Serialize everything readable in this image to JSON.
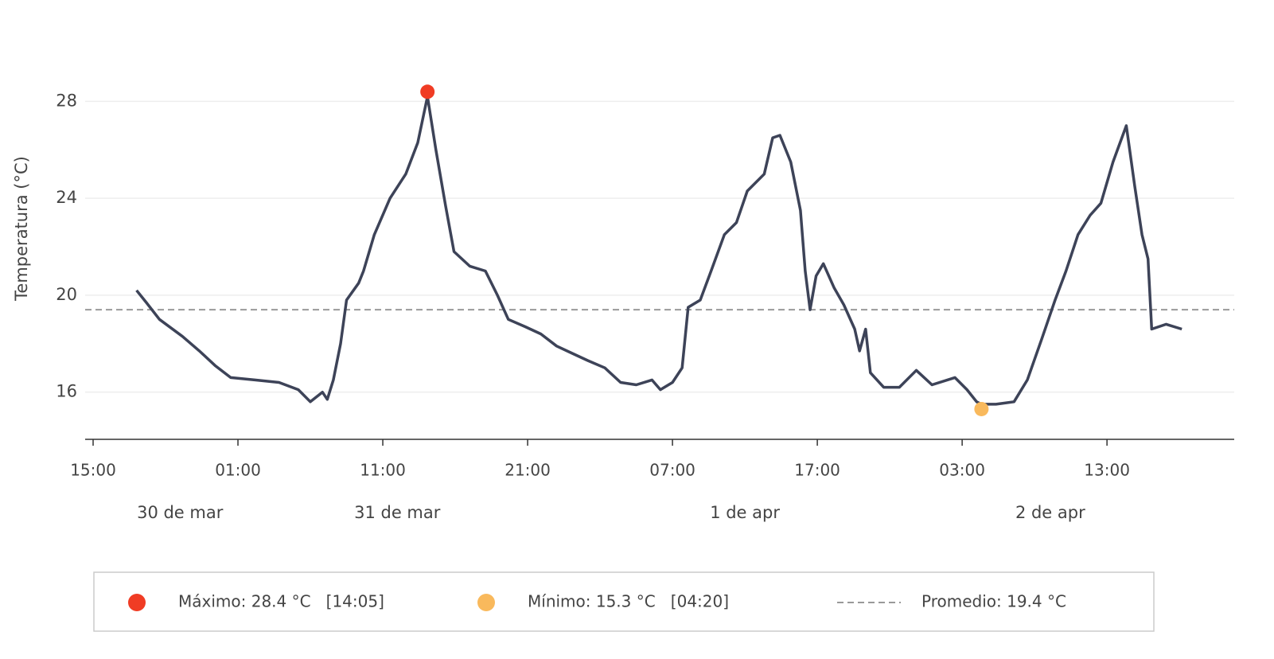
{
  "chart_data": {
    "type": "line",
    "y_label": "Temperatura (°C)",
    "color": "#3d4358",
    "x": [
      "03-30T18:00",
      "03-30T18:40",
      "03-30T19:35",
      "03-30T21:10",
      "03-30T22:20",
      "03-30T23:25",
      "03-31T00:30",
      "03-31T02:10",
      "03-31T03:50",
      "03-31T05:10",
      "03-31T06:00",
      "03-31T06:50",
      "03-31T07:10",
      "03-31T07:35",
      "03-31T08:05",
      "03-31T08:30",
      "03-31T09:20",
      "03-31T09:40",
      "03-31T10:25",
      "03-31T11:30",
      "03-31T12:35",
      "03-31T13:25",
      "03-31T14:05",
      "03-31T14:40",
      "03-31T15:20",
      "03-31T15:55",
      "03-31T17:00",
      "03-31T18:05",
      "03-31T18:55",
      "03-31T19:40",
      "03-31T20:50",
      "03-31T21:55",
      "03-31T23:00",
      "04-01T00:05",
      "04-01T01:10",
      "04-01T02:20",
      "04-01T03:25",
      "04-01T04:30",
      "04-01T05:35",
      "04-01T06:10",
      "04-01T07:00",
      "04-01T07:40",
      "04-01T08:05",
      "04-01T08:55",
      "04-01T09:40",
      "04-01T10:35",
      "04-01T11:25",
      "04-01T12:10",
      "04-01T13:20",
      "04-01T13:55",
      "04-01T14:25",
      "04-01T15:10",
      "04-01T15:50",
      "04-01T16:10",
      "04-01T16:30",
      "04-01T16:55",
      "04-01T17:25",
      "04-01T18:10",
      "04-01T18:50",
      "04-01T19:35",
      "04-01T19:55",
      "04-01T20:20",
      "04-01T20:40",
      "04-01T21:35",
      "04-01T22:40",
      "04-01T23:50",
      "04-02T00:55",
      "04-02T02:30",
      "04-02T03:20",
      "04-02T04:00",
      "04-02T04:20",
      "04-02T05:20",
      "04-02T06:35",
      "04-02T07:30",
      "04-02T08:30",
      "04-02T09:25",
      "04-02T10:10",
      "04-02T11:00",
      "04-02T11:50",
      "04-02T12:35",
      "04-02T13:25",
      "04-02T14:20",
      "04-02T14:55",
      "04-02T15:25",
      "04-02T15:50",
      "04-02T16:05",
      "04-02T17:05",
      "04-02T18:10"
    ],
    "values": [
      20.2,
      19.7,
      19.0,
      18.3,
      17.7,
      17.1,
      16.6,
      16.5,
      16.4,
      16.1,
      15.6,
      16.0,
      15.7,
      16.5,
      18.0,
      19.8,
      20.5,
      21.0,
      22.5,
      24.0,
      25.0,
      26.3,
      28.2,
      26.0,
      23.7,
      21.8,
      21.2,
      21.0,
      20.0,
      19.0,
      18.7,
      18.4,
      17.9,
      17.6,
      17.3,
      17.0,
      16.4,
      16.3,
      16.5,
      16.1,
      16.4,
      17.0,
      19.5,
      19.8,
      21.0,
      22.5,
      23.0,
      24.3,
      25.0,
      26.5,
      26.6,
      25.5,
      23.5,
      21.0,
      19.4,
      20.8,
      21.3,
      20.3,
      19.6,
      18.6,
      17.7,
      18.6,
      16.8,
      16.2,
      16.2,
      16.9,
      16.3,
      16.6,
      16.1,
      15.6,
      15.5,
      15.5,
      15.6,
      16.5,
      18.2,
      19.8,
      21.0,
      22.5,
      23.3,
      23.8,
      25.5,
      27.0,
      24.5,
      22.5,
      21.5,
      18.6,
      18.8,
      18.6
    ],
    "xlim": [
      "03-30T14:27",
      "04-02T21:47"
    ],
    "xticks": [
      {
        "value": "03-30T15:00",
        "label": "15:00"
      },
      {
        "value": "03-31T01:00",
        "label": "01:00"
      },
      {
        "value": "03-31T11:00",
        "label": "11:00"
      },
      {
        "value": "03-31T21:00",
        "label": "21:00"
      },
      {
        "value": "04-01T07:00",
        "label": "07:00"
      },
      {
        "value": "04-01T17:00",
        "label": "17:00"
      },
      {
        "value": "04-02T03:00",
        "label": "03:00"
      },
      {
        "value": "04-02T13:00",
        "label": "13:00"
      }
    ],
    "day_labels": [
      {
        "date": "03-30",
        "label": "30 de mar"
      },
      {
        "date": "03-31",
        "label": "31 de mar"
      },
      {
        "date": "04-01",
        "label": "1 de apr"
      },
      {
        "date": "04-02",
        "label": "2 de apr"
      }
    ],
    "ylim": [
      14.05,
      29
    ],
    "yticks": [
      16,
      20,
      24,
      28
    ],
    "grid": true,
    "markers": [
      {
        "label": "Máximo: 28.4 °C   [14:05]",
        "x": "03-31T14:05",
        "value": 28.4,
        "color": "#f03c24"
      },
      {
        "label": "Mínimo: 15.3 °C   [04:20]",
        "x": "04-02T04:20",
        "value": 15.3,
        "color": "#f9b95c"
      }
    ],
    "average": {
      "label": "Promedio: 19.4 °C",
      "value": 19.4,
      "color": "#999999"
    }
  }
}
